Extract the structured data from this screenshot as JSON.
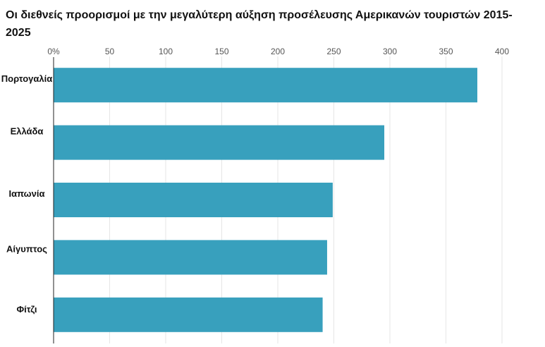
{
  "chart_data": {
    "type": "bar",
    "orientation": "horizontal",
    "title": "Οι διεθνείς προορισμοί με την μεγαλύτερη αύξηση προσέλευσης Αμερικανών τουριστών 2015-2025",
    "categories": [
      "Πορτογαλία",
      "Ελλάδα",
      "Ιαπωνία",
      "Αίγυπτος",
      "Φίτζι"
    ],
    "values": [
      378,
      295,
      249,
      244,
      240
    ],
    "xlim": [
      0,
      400
    ],
    "x_ticks": [
      "0%",
      "50",
      "100",
      "150",
      "200",
      "250",
      "300",
      "350",
      "400"
    ],
    "x_tick_values": [
      0,
      50,
      100,
      150,
      200,
      250,
      300,
      350,
      400
    ],
    "xaxis_position": "top",
    "grid": true,
    "bar_color": "#38a0bd",
    "grid_color": "#e6e6e6"
  }
}
